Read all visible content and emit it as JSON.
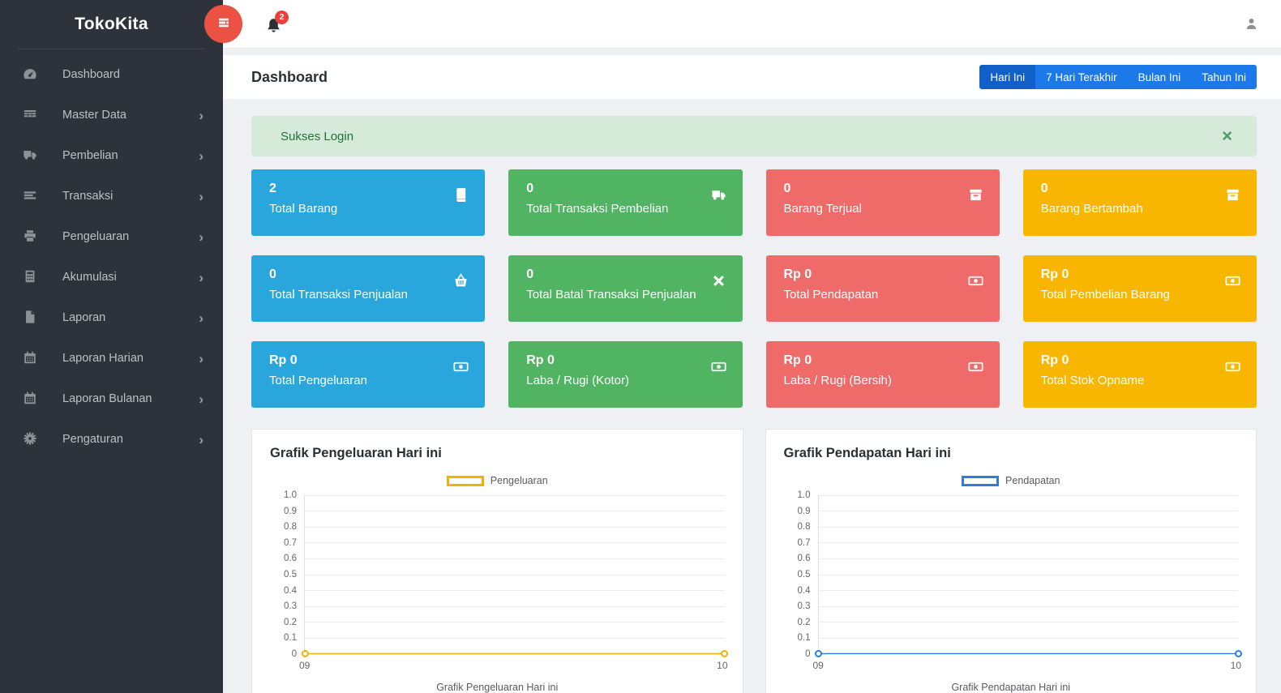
{
  "app": {
    "name": "TokoKita"
  },
  "topbar": {
    "notification_count": "2"
  },
  "sidebar": {
    "items": [
      {
        "label": "Dashboard",
        "icon": "dashboard-icon",
        "has_children": false
      },
      {
        "label": "Master Data",
        "icon": "table-icon",
        "has_children": true
      },
      {
        "label": "Pembelian",
        "icon": "truck-icon",
        "has_children": true
      },
      {
        "label": "Transaksi",
        "icon": "list-icon",
        "has_children": true
      },
      {
        "label": "Pengeluaran",
        "icon": "print-icon",
        "has_children": true
      },
      {
        "label": "Akumulasi",
        "icon": "calculator-icon",
        "has_children": true
      },
      {
        "label": "Laporan",
        "icon": "file-icon",
        "has_children": true
      },
      {
        "label": "Laporan Harian",
        "icon": "calendar-icon",
        "has_children": true
      },
      {
        "label": "Laporan Bulanan",
        "icon": "calendar-icon",
        "has_children": true
      },
      {
        "label": "Pengaturan",
        "icon": "gear-icon",
        "has_children": true
      }
    ]
  },
  "header": {
    "title": "Dashboard",
    "filters": [
      {
        "label": "Hari Ini",
        "active": true
      },
      {
        "label": "7 Hari Terakhir",
        "active": false
      },
      {
        "label": "Bulan Ini",
        "active": false
      },
      {
        "label": "Tahun Ini",
        "active": false
      }
    ]
  },
  "alert": {
    "message": "Sukses Login",
    "close_label": "×"
  },
  "cards": [
    {
      "value": "2",
      "label": "Total Barang",
      "icon": "book-icon",
      "color": "#29a7dd"
    },
    {
      "value": "0",
      "label": "Total Transaksi Pembelian",
      "icon": "truck-icon",
      "color": "#50b462"
    },
    {
      "value": "0",
      "label": "Barang Terjual",
      "icon": "archive-icon",
      "color": "#ee6b69"
    },
    {
      "value": "0",
      "label": "Barang Bertambah",
      "icon": "archive-icon",
      "color": "#f8b600"
    },
    {
      "value": "0",
      "label": "Total Transaksi Penjualan",
      "icon": "basket-icon",
      "color": "#29a7dd"
    },
    {
      "value": "0",
      "label": "Total Batal Transaksi Penjualan",
      "icon": "times-icon",
      "color": "#50b462"
    },
    {
      "value": "Rp 0",
      "label": "Total Pendapatan",
      "icon": "money-icon",
      "color": "#ee6b69"
    },
    {
      "value": "Rp 0",
      "label": "Total Pembelian Barang",
      "icon": "money-icon",
      "color": "#f8b600"
    },
    {
      "value": "Rp 0",
      "label": "Total Pengeluaran",
      "icon": "money-icon",
      "color": "#29a7dd"
    },
    {
      "value": "Rp 0",
      "label": "Laba / Rugi (Kotor)",
      "icon": "money-icon",
      "color": "#50b462"
    },
    {
      "value": "Rp 0",
      "label": "Laba / Rugi (Bersih)",
      "icon": "money-icon",
      "color": "#ee6b69"
    },
    {
      "value": "Rp 0",
      "label": "Total Stok Opname",
      "icon": "money-icon",
      "color": "#f8b600"
    }
  ],
  "chart_data": [
    {
      "type": "line",
      "title": "Grafik Pengeluaran Hari ini",
      "xlabel": "Grafik Pengeluaran Hari ini",
      "x": [
        "09",
        "10"
      ],
      "series": [
        {
          "name": "Pengeluaran",
          "color": "#f2b200",
          "values": [
            0,
            0
          ]
        }
      ],
      "ylim": [
        0,
        1
      ],
      "yticks": [
        "1.0",
        "0.9",
        "0.8",
        "0.7",
        "0.6",
        "0.5",
        "0.4",
        "0.3",
        "0.2",
        "0.1",
        "0"
      ],
      "grid": true,
      "legend_position": "top"
    },
    {
      "type": "line",
      "title": "Grafik Pendapatan Hari ini",
      "xlabel": "Grafik Pendapatan Hari ini",
      "x": [
        "09",
        "10"
      ],
      "series": [
        {
          "name": "Pendapatan",
          "color": "#2d7ce0",
          "values": [
            0,
            0
          ]
        }
      ],
      "ylim": [
        0,
        1
      ],
      "yticks": [
        "1.0",
        "0.9",
        "0.8",
        "0.7",
        "0.6",
        "0.5",
        "0.4",
        "0.3",
        "0.2",
        "0.1",
        "0"
      ],
      "grid": true,
      "legend_position": "top"
    }
  ],
  "colors": {
    "sidebar_bg": "#2e323a",
    "accent_blue": "#1b79e9",
    "accent_blue_active": "#1160c9",
    "toggle_red": "#ec5244",
    "badge_red": "#e8413c",
    "alert_bg": "#d5ead9",
    "alert_text": "#23703b"
  }
}
